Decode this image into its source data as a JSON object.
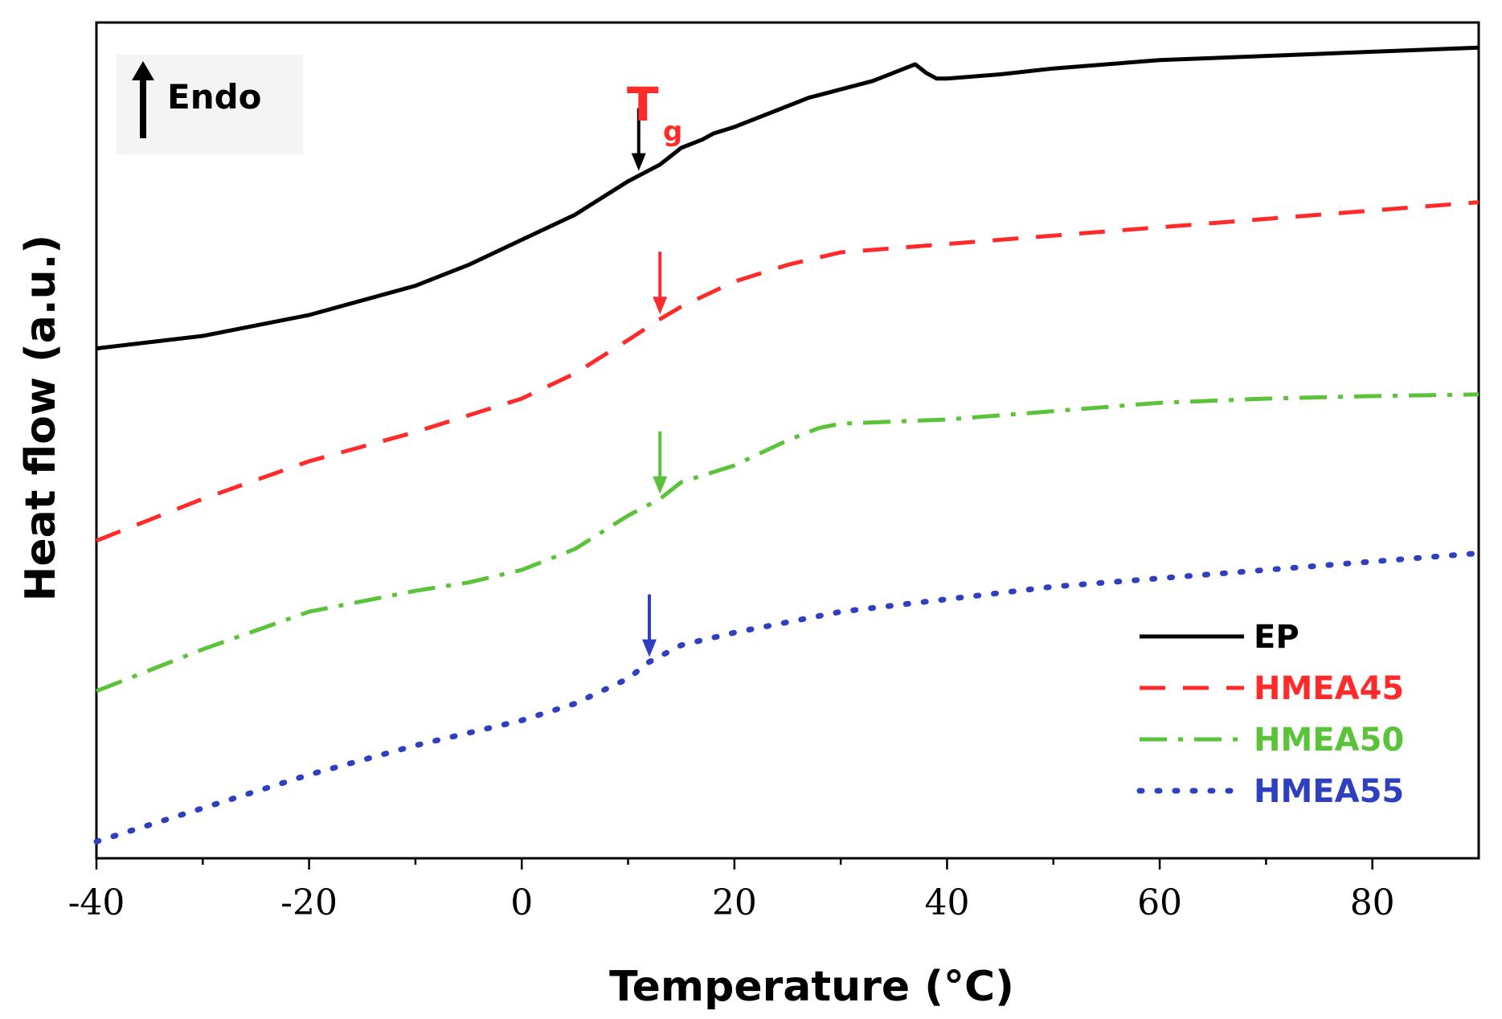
{
  "chart_data": {
    "type": "line",
    "title": "",
    "xlabel": "Temperature (°C)",
    "ylabel": "Heat flow (a.u.)",
    "xlim": [
      -40,
      90
    ],
    "ylim": [
      0,
      100
    ],
    "x_ticks": [
      -40,
      -20,
      0,
      20,
      40,
      60,
      80
    ],
    "x_tick_labels": [
      "-40",
      "-20",
      "0",
      "20",
      "40",
      "60",
      "80"
    ],
    "y_ticks_shown": false,
    "annotations": {
      "endo": "Endo",
      "tg_main": "T",
      "tg_sub": "g"
    },
    "series": [
      {
        "name": "EP",
        "color": "#000000",
        "dash": "solid",
        "x": [
          -40,
          -30,
          -20,
          -10,
          -5,
          0,
          5,
          10,
          13,
          15,
          17,
          18,
          20,
          23,
          25,
          27,
          30,
          33,
          35,
          36,
          37,
          38,
          39,
          40,
          45,
          50,
          60,
          70,
          80,
          90
        ],
        "y": [
          61,
          62.5,
          65,
          68.5,
          71,
          74,
          77,
          81,
          83,
          85,
          86,
          86.7,
          87.5,
          89,
          90,
          91,
          92,
          93,
          94,
          94.5,
          95,
          94,
          93.3,
          93.3,
          93.8,
          94.5,
          95.5,
          96,
          96.5,
          97
        ],
        "tg": 11,
        "tg_arrow_y": 83
      },
      {
        "name": "HMEA45",
        "color": "#ff2a2a",
        "dash": "dashed",
        "x": [
          -40,
          -30,
          -20,
          -10,
          -5,
          0,
          5,
          10,
          13,
          15,
          20,
          25,
          30,
          40,
          50,
          60,
          70,
          80,
          90
        ],
        "y": [
          38,
          43,
          47.5,
          51,
          53,
          55,
          58,
          62,
          64.5,
          66,
          69,
          71,
          72.5,
          73.5,
          74.5,
          75.5,
          76.5,
          77.5,
          78.5
        ],
        "tg": 13,
        "tg_arrow_y": 65
      },
      {
        "name": "HMEA50",
        "color": "#5ac339",
        "dash": "dashdot",
        "x": [
          -40,
          -30,
          -20,
          -10,
          -5,
          0,
          5,
          10,
          13,
          15,
          20,
          25,
          28,
          30,
          40,
          50,
          60,
          70,
          80,
          90
        ],
        "y": [
          20,
          25,
          29.5,
          32,
          33,
          34.5,
          37,
          41,
          43,
          45,
          47,
          50,
          51.5,
          52,
          52.5,
          53.5,
          54.5,
          55,
          55.3,
          55.5
        ],
        "tg": 13,
        "tg_arrow_y": 43.5
      },
      {
        "name": "HMEA55",
        "color": "#2e3fbf",
        "dash": "dotted",
        "x": [
          -40,
          -30,
          -20,
          -10,
          -5,
          0,
          5,
          10,
          12,
          15,
          20,
          30,
          40,
          50,
          60,
          70,
          80,
          90
        ],
        "y": [
          2,
          6,
          10,
          13.5,
          15,
          16.5,
          18.5,
          21.5,
          23.5,
          25.5,
          27,
          29.5,
          31,
          32.5,
          33.5,
          34.5,
          35.5,
          36.5
        ],
        "tg": 12,
        "tg_arrow_y": 25
      }
    ],
    "legend": {
      "position": "bottom-right",
      "entries": [
        "EP",
        "HMEA45",
        "HMEA50",
        "HMEA55"
      ]
    }
  }
}
